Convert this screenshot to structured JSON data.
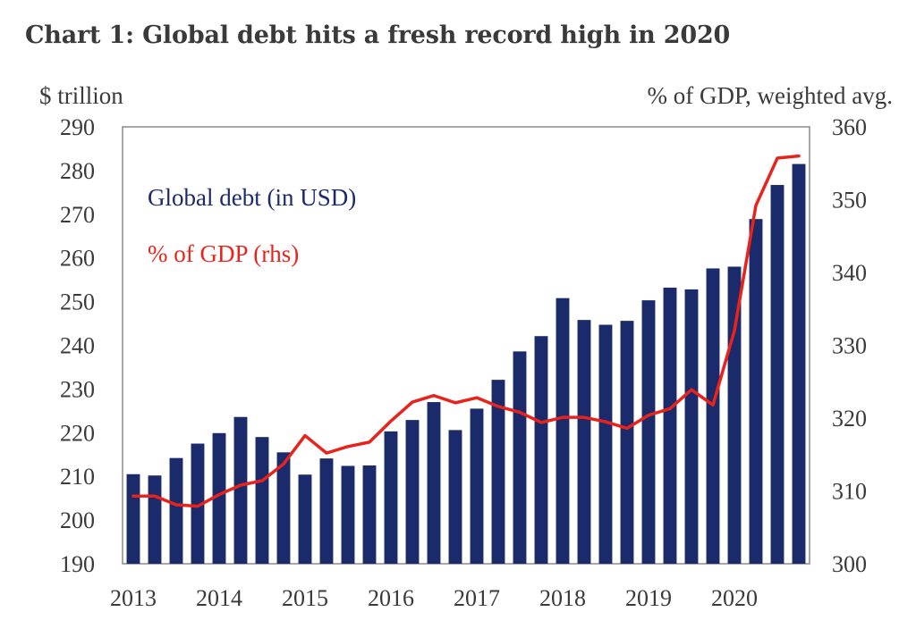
{
  "title": "Chart 1: Global debt hits a fresh record high in 2020",
  "chart_data": {
    "type": "bar",
    "left_axis_label": "$ trillion",
    "right_axis_label": "% of GDP, weighted avg.",
    "ylim": [
      190,
      290
    ],
    "y_ticks": [
      290,
      280,
      270,
      260,
      250,
      240,
      230,
      220,
      210,
      200,
      190
    ],
    "y2lim": [
      300,
      360
    ],
    "y2_ticks": [
      360,
      350,
      340,
      330,
      320,
      310,
      300
    ],
    "x_tick_labels": [
      "2013",
      "2014",
      "2015",
      "2016",
      "2017",
      "2018",
      "2019",
      "2020"
    ],
    "quarters": [
      "2013Q1",
      "2013Q2",
      "2013Q3",
      "2013Q4",
      "2014Q1",
      "2014Q2",
      "2014Q3",
      "2014Q4",
      "2015Q1",
      "2015Q2",
      "2015Q3",
      "2015Q4",
      "2016Q1",
      "2016Q2",
      "2016Q3",
      "2016Q4",
      "2017Q1",
      "2017Q2",
      "2017Q3",
      "2017Q4",
      "2018Q1",
      "2018Q2",
      "2018Q3",
      "2018Q4",
      "2019Q1",
      "2019Q2",
      "2019Q3",
      "2019Q4",
      "2020Q1",
      "2020Q2",
      "2020Q3",
      "2020Q4"
    ],
    "series": [
      {
        "name": "Global debt (in USD)",
        "axis": "left",
        "type": "bar",
        "color": "#1b2a6b",
        "values": [
          210.5,
          210.2,
          214.2,
          217.5,
          219.9,
          223.6,
          219.0,
          215.5,
          210.4,
          214.1,
          212.4,
          212.5,
          220.3,
          222.9,
          227.0,
          220.6,
          225.5,
          232.1,
          238.6,
          242.1,
          250.8,
          245.8,
          244.7,
          245.6,
          250.3,
          253.2,
          252.8,
          257.6,
          258.0,
          268.9,
          276.7,
          281.5
        ]
      },
      {
        "name": "% of GDP (rhs)",
        "axis": "right",
        "type": "line",
        "color": "#e8231b",
        "values": [
          309.3,
          309.3,
          308.1,
          307.9,
          309.5,
          310.8,
          311.4,
          313.7,
          317.6,
          315.2,
          316.1,
          316.7,
          319.6,
          322.2,
          323.1,
          322.1,
          322.8,
          321.6,
          320.8,
          319.4,
          320.1,
          320.1,
          319.5,
          318.6,
          320.4,
          321.3,
          323.9,
          321.8,
          332.0,
          349.2,
          355.7,
          356.0
        ]
      }
    ],
    "grid": false,
    "legend_placement": "top-left inside plot"
  }
}
